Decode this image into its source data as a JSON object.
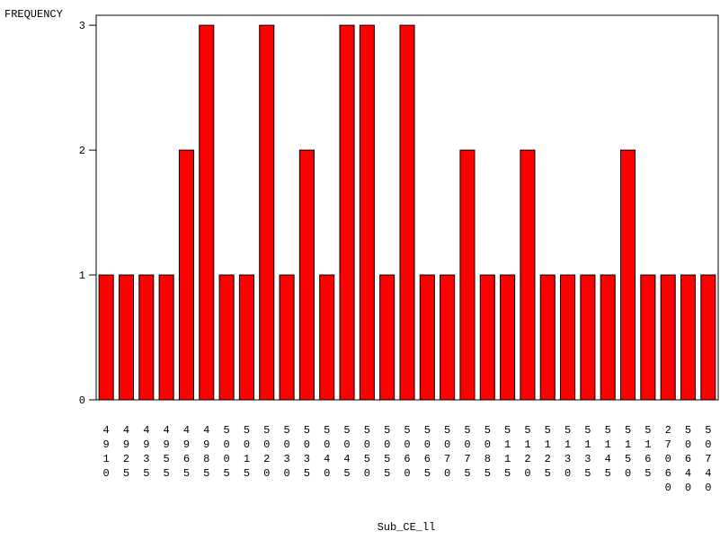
{
  "chart_data": {
    "type": "bar",
    "y_label": "FREQUENCY",
    "x_label": "Sub_CE_ll",
    "categories": [
      "4910",
      "4925",
      "4935",
      "4955",
      "4965",
      "4985",
      "5005",
      "5015",
      "5020",
      "5030",
      "5035",
      "5040",
      "5045",
      "5050",
      "5055",
      "5060",
      "5065",
      "5070",
      "5075",
      "5085",
      "5115",
      "5120",
      "5125",
      "5130",
      "5135",
      "5145",
      "5150",
      "5165",
      "27060",
      "50640",
      "50740"
    ],
    "values": [
      1,
      1,
      1,
      1,
      2,
      3,
      1,
      1,
      3,
      1,
      2,
      1,
      3,
      3,
      1,
      3,
      1,
      1,
      2,
      1,
      1,
      2,
      1,
      1,
      1,
      1,
      2,
      1,
      1,
      1,
      1
    ],
    "color": "#ff0000",
    "ylim": [
      0,
      3.08
    ],
    "yticks": [
      0,
      1,
      2,
      3
    ],
    "grid": false
  }
}
